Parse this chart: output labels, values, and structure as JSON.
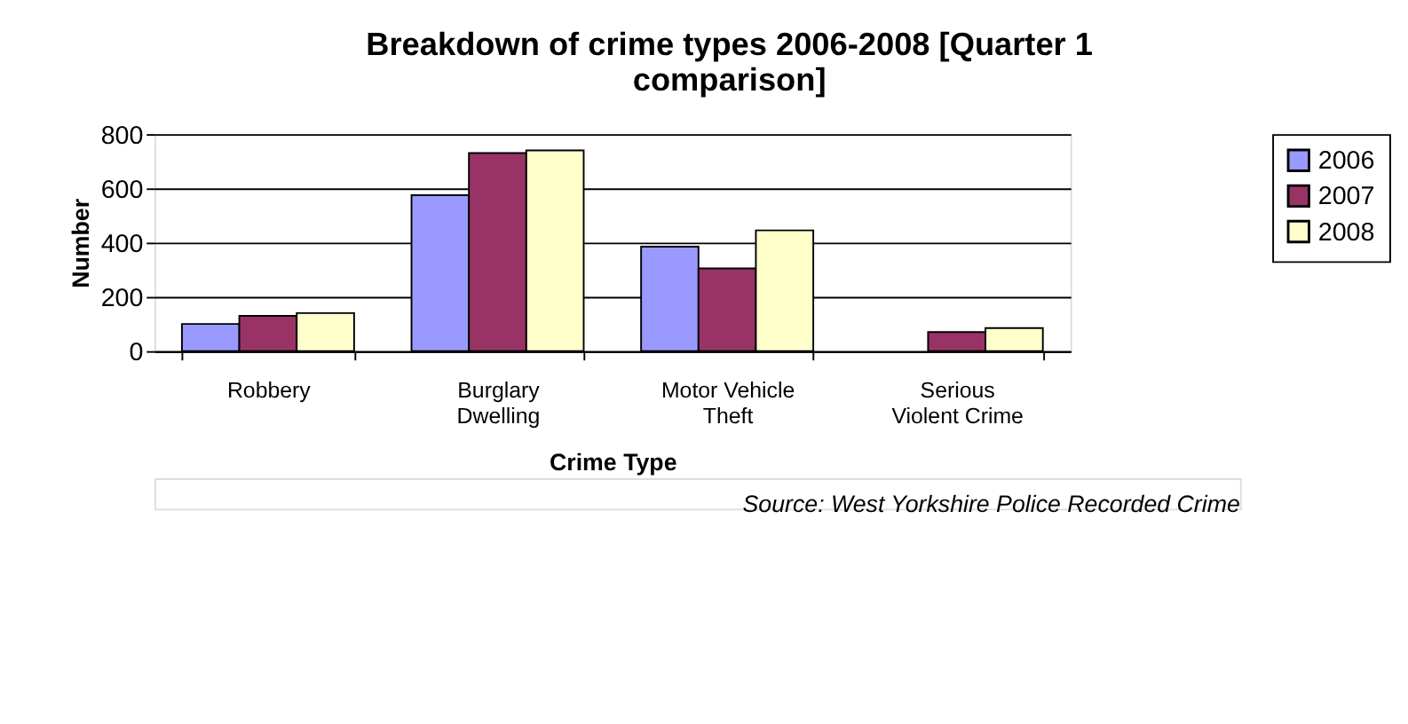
{
  "chart_data": {
    "type": "bar",
    "title": "Breakdown of crime types 2006-2008 [Quarter 1 comparison]",
    "xlabel": "Crime Type",
    "ylabel": "Number",
    "categories": [
      "Robbery",
      "Burglary Dwelling",
      "Motor Vehicle Theft",
      "Serious Violent Crime"
    ],
    "series": [
      {
        "name": "2006",
        "color": "#9999ff",
        "values": [
          100,
          575,
          385,
          null
        ]
      },
      {
        "name": "2007",
        "color": "#993366",
        "values": [
          130,
          730,
          305,
          70
        ]
      },
      {
        "name": "2008",
        "color": "#ffffcc",
        "values": [
          140,
          740,
          445,
          85
        ]
      }
    ],
    "ylim": [
      0,
      800
    ],
    "yticks": [
      0,
      200,
      400,
      600,
      800
    ],
    "grid": "y",
    "legend": "right",
    "annotations": [
      "Source: West Yorkshire Police Recorded Crime"
    ]
  }
}
